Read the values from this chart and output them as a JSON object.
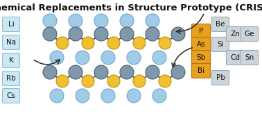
{
  "title": "Chemical Replacements in Structure Prototype (CRISP)",
  "title_fontsize": 9.5,
  "bg_color": "#ffffff",
  "left_elements": [
    "Li",
    "Na",
    "K",
    "Rb",
    "Cs"
  ],
  "left_box_color": "#cce8f4",
  "left_box_edge": "#90bfd8",
  "right_col1_elements": [
    "P",
    "As",
    "Sb",
    "Bi"
  ],
  "right_col1_color": "#e8a020",
  "right_col1_edge": "#b87800",
  "right_col_color": "#cdd5db",
  "right_col_edge": "#9aaab5",
  "blue_circle_color": "#a0cce8",
  "blue_circle_edge": "#70a8cc",
  "gray_circle_color": "#8099aa",
  "gray_circle_edge": "#506070",
  "yellow_circle_color": "#f0c030",
  "yellow_circle_edge": "#c09010",
  "bond_color": "#444444"
}
